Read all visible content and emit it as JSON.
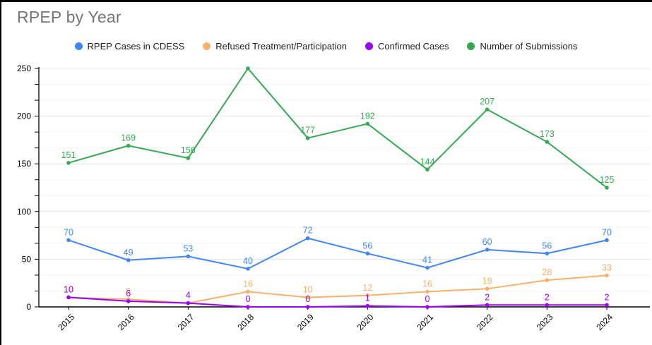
{
  "title": "RPEP by Year",
  "chart_data": {
    "type": "line",
    "x": [
      "2015",
      "2016",
      "2017",
      "2018",
      "2019",
      "2020",
      "2021",
      "2022",
      "2023",
      "2024"
    ],
    "series": [
      {
        "name": "RPEP Cases in CDESS",
        "color": "#4285F4",
        "values": [
          70,
          49,
          53,
          40,
          72,
          56,
          41,
          60,
          56,
          70
        ]
      },
      {
        "name": "Refused Treatment/Participation",
        "color": "#F6B26B",
        "values": [
          10,
          8,
          4,
          16,
          10,
          12,
          16,
          19,
          28,
          33
        ]
      },
      {
        "name": "Confirmed Cases",
        "color": "#9900FF",
        "values": [
          10,
          6,
          4,
          0,
          0,
          1,
          0,
          2,
          2,
          2
        ]
      },
      {
        "name": "Number of Submissions",
        "color": "#34A853",
        "values": [
          151,
          169,
          156,
          250,
          177,
          192,
          144,
          207,
          173,
          125
        ]
      }
    ],
    "ylim": [
      0,
      250
    ],
    "y_ticks": [
      0,
      50,
      100,
      150,
      200,
      250
    ],
    "y_tick_labels": [
      "0",
      "50",
      "100",
      "150",
      "200",
      "250"
    ],
    "minor_divisions_per_major": 3,
    "grid": true,
    "legend_position": "top",
    "data_labels": true,
    "note_labels": "data labels shown above each point in series color; label for the 250 peak is clipped above the plot area",
    "colors": {
      "axis": "#000000",
      "major_grid": "#e3e3e3",
      "minor_grid": "#f4f4f4",
      "title_text": "#757575",
      "legend_text": "#202124"
    }
  }
}
